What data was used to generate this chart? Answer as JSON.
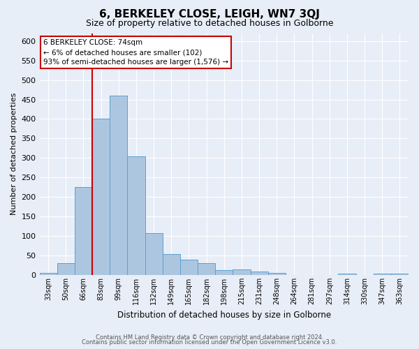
{
  "title": "6, BERKELEY CLOSE, LEIGH, WN7 3QJ",
  "subtitle": "Size of property relative to detached houses in Golborne",
  "xlabel": "Distribution of detached houses by size in Golborne",
  "ylabel": "Number of detached properties",
  "footer_line1": "Contains HM Land Registry data © Crown copyright and database right 2024.",
  "footer_line2": "Contains public sector information licensed under the Open Government Licence v3.0.",
  "bar_labels": [
    "33sqm",
    "50sqm",
    "66sqm",
    "83sqm",
    "99sqm",
    "116sqm",
    "132sqm",
    "149sqm",
    "165sqm",
    "182sqm",
    "198sqm",
    "215sqm",
    "231sqm",
    "248sqm",
    "264sqm",
    "281sqm",
    "297sqm",
    "314sqm",
    "330sqm",
    "347sqm",
    "363sqm"
  ],
  "bar_values": [
    5,
    30,
    225,
    400,
    460,
    305,
    108,
    53,
    40,
    30,
    13,
    14,
    9,
    5,
    0,
    0,
    0,
    4,
    0,
    3,
    4
  ],
  "bar_color": "#adc6e0",
  "bar_edge_color": "#5a9fd4",
  "background_color": "#e8eef7",
  "annotation_box_text_line1": "6 BERKELEY CLOSE: 74sqm",
  "annotation_box_text_line2": "← 6% of detached houses are smaller (102)",
  "annotation_box_text_line3": "93% of semi-detached houses are larger (1,576) →",
  "annotation_box_color": "#ffffff",
  "annotation_box_edge_color": "#cc0000",
  "vline_color": "#cc0000",
  "vline_bin_index": 3,
  "ylim": [
    0,
    620
  ],
  "yticks": [
    0,
    50,
    100,
    150,
    200,
    250,
    300,
    350,
    400,
    450,
    500,
    550,
    600
  ],
  "num_bars": 21
}
